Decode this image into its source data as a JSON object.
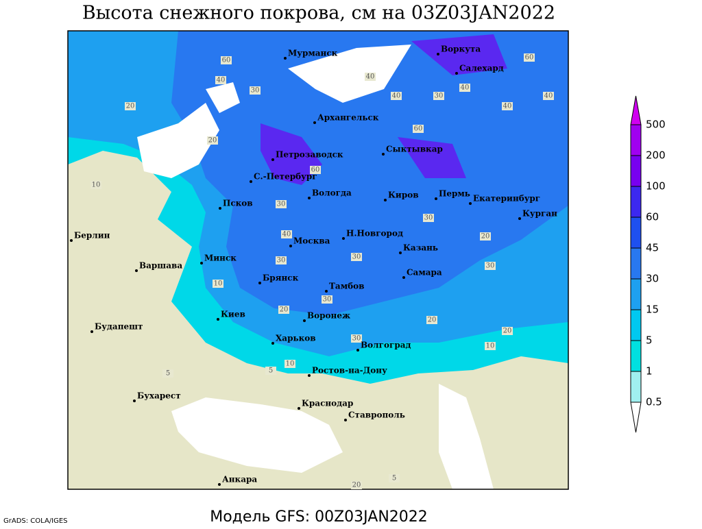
{
  "title": "Высота снежного покрова, см на 03Z03JAN2022",
  "footer": "Модель GFS: 00Z03JAN2022",
  "credit": "GrADS: COLA/IGES",
  "cities": [
    "Мурманск",
    "Воркута",
    "Салехард",
    "Архангельск",
    "Петрозаводск",
    "Сыктывкар",
    "С.-Петербург",
    "Вологда",
    "Киров",
    "Пермь",
    "Екатеринбург",
    "Курган",
    "Псков",
    "Н.Новгород",
    "Берлин",
    "Москва",
    "Казань",
    "Минск",
    "Варшава",
    "Самара",
    "Брянск",
    "Тамбов",
    "Киев",
    "Воронеж",
    "Будапешт",
    "Харьков",
    "Волгоград",
    "Ростов-на-Дону",
    "Бухарест",
    "Краснодар",
    "Ставрополь",
    "Анкара"
  ],
  "contour_labels": [
    "60",
    "40",
    "30",
    "20",
    "40",
    "30",
    "20",
    "60",
    "40",
    "60",
    "40",
    "40",
    "60",
    "30",
    "40",
    "30",
    "20",
    "10",
    "30",
    "20",
    "30",
    "20",
    "10",
    "5",
    "5",
    "10",
    "30",
    "20",
    "10",
    "30",
    "5",
    "20",
    "40",
    "30"
  ],
  "colorbar": {
    "levels": [
      0.5,
      1,
      5,
      15,
      30,
      45,
      60,
      100,
      200,
      500
    ],
    "colors": [
      "#ffffff",
      "#a0f0f0",
      "#00e0e0",
      "#00c8f0",
      "#1ea0f0",
      "#2878f0",
      "#1e50f0",
      "#3c28f0",
      "#7800f0",
      "#a000f0",
      "#d000f0"
    ]
  }
}
